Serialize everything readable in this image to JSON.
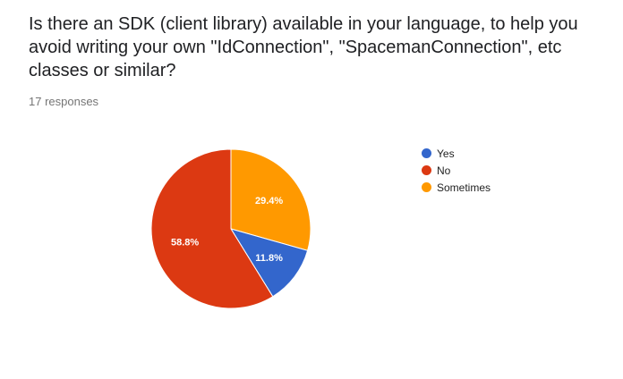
{
  "question": {
    "title": "Is there an SDK (client library) available in your language, to help you avoid writing your own \"IdConnection\", \"SpacemanConnection\", etc classes or similar?",
    "responses": "17 responses"
  },
  "chart_data": {
    "type": "pie",
    "title": "",
    "categories": [
      "Yes",
      "No",
      "Sometimes"
    ],
    "values": [
      11.8,
      58.8,
      29.4
    ],
    "labels": [
      "11.8%",
      "58.8%",
      "29.4%"
    ],
    "colors": [
      "#3366cc",
      "#dc3912",
      "#ff9900"
    ],
    "legend_position": "right",
    "start_angle": "top, clockwise starting with Sometimes"
  }
}
